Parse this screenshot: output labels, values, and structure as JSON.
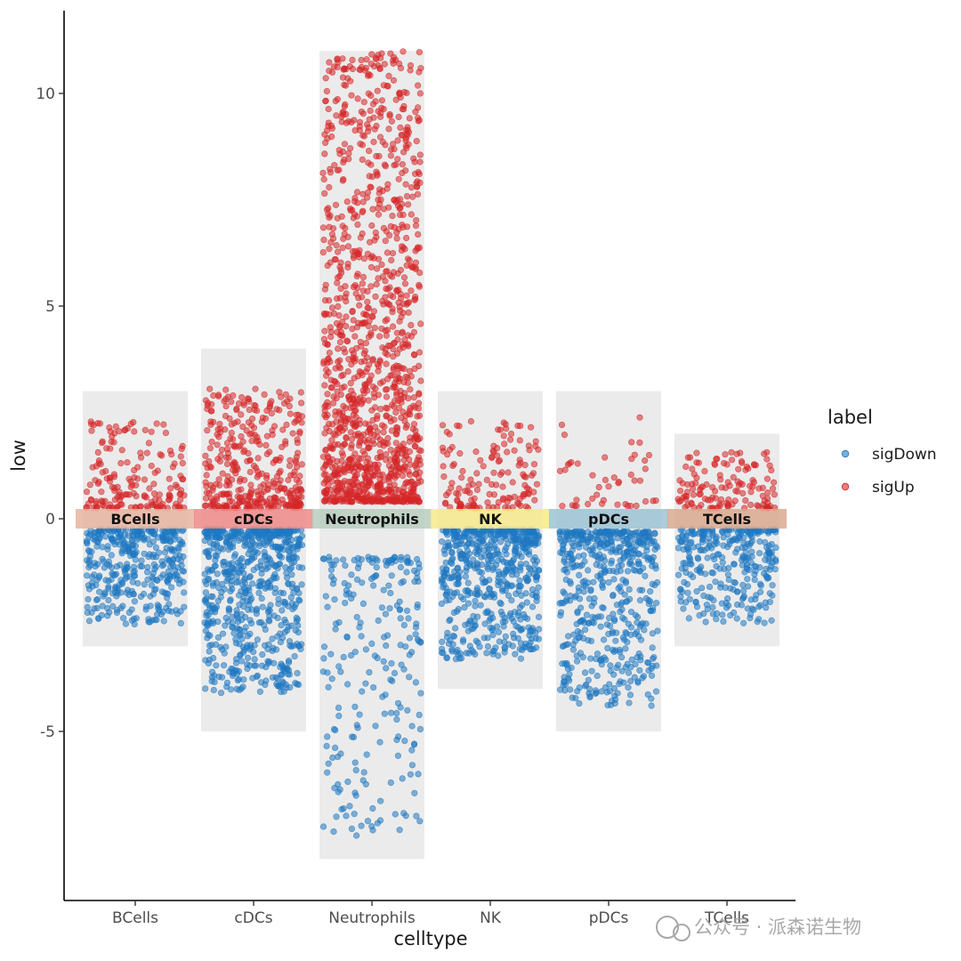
{
  "chart_data": {
    "type": "scatter",
    "xlabel": "celltype",
    "ylabel": "low",
    "ylim": [
      -9,
      12
    ],
    "y_ticks": [
      -5,
      0,
      5,
      10
    ],
    "categories": [
      "BCells",
      "cDCs",
      "Neutrophils",
      "NK",
      "pDCs",
      "TCells"
    ],
    "background_bars": [
      {
        "category": "BCells",
        "min": -3,
        "max": 3
      },
      {
        "category": "cDCs",
        "min": -5,
        "max": 4
      },
      {
        "category": "Neutrophils",
        "min": -8,
        "max": 11
      },
      {
        "category": "NK",
        "min": -4,
        "max": 3
      },
      {
        "category": "pDCs",
        "min": -5,
        "max": 3
      },
      {
        "category": "TCells",
        "min": -3,
        "max": 2
      }
    ],
    "strip_colors": {
      "BCells": "#e8b4a0",
      "cDCs": "#ef8a8a",
      "Neutrophils": "#b9cdbf",
      "NK": "#f7e98c",
      "pDCs": "#9cc3d4",
      "TCells": "#d9a98f"
    },
    "legend": {
      "title": "label",
      "position": "right",
      "entries": [
        "sigDown",
        "sigUp"
      ]
    },
    "series": [
      {
        "name": "sigDown",
        "color": "#1f78c1",
        "ranges": {
          "BCells": {
            "min": -2.5,
            "max": -0.25,
            "n": 380
          },
          "cDCs": {
            "min": -4.1,
            "max": -0.25,
            "n": 650
          },
          "Neutrophils": {
            "min": -7.5,
            "max": -0.9,
            "n": 230
          },
          "NK": {
            "min": -3.3,
            "max": -0.25,
            "n": 560
          },
          "pDCs": {
            "min": -4.4,
            "max": -0.3,
            "n": 520
          },
          "TCells": {
            "min": -2.5,
            "max": -0.25,
            "n": 300
          }
        }
      },
      {
        "name": "sigUp",
        "color": "#d62728",
        "ranges": {
          "BCells": {
            "min": 0.25,
            "max": 2.3,
            "n": 170
          },
          "cDCs": {
            "min": 0.25,
            "max": 3.1,
            "n": 360
          },
          "Neutrophils": {
            "min": 0.4,
            "max": 11.0,
            "n": 1250
          },
          "NK": {
            "min": 0.25,
            "max": 2.3,
            "n": 140
          },
          "pDCs": {
            "min": 0.3,
            "max": 2.4,
            "n": 45
          },
          "TCells": {
            "min": 0.25,
            "max": 1.6,
            "n": 130
          }
        }
      }
    ]
  },
  "watermark": "公众号 · 派森诺生物"
}
